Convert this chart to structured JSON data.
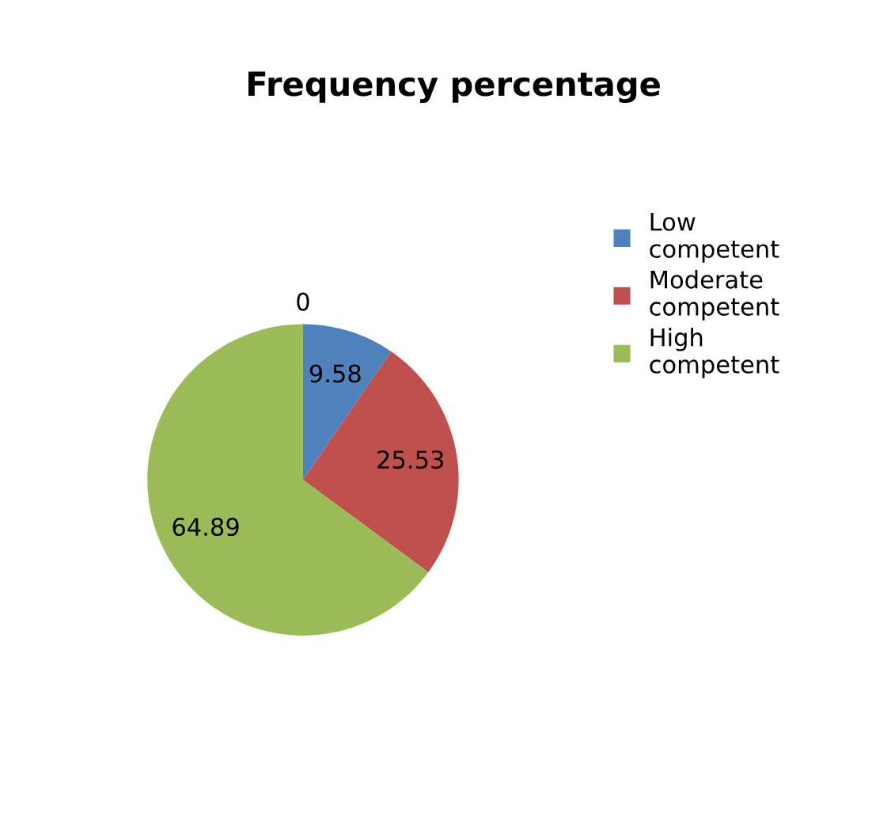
{
  "chart_data": {
    "type": "pie",
    "title": "Frequency percentage",
    "categories": [
      null,
      "Low competent",
      "Moderate competent",
      "High competent"
    ],
    "values": [
      0,
      9.58,
      25.53,
      64.89
    ],
    "colors": [
      "#8064a2",
      "#4f81bd",
      "#c0504d",
      "#9bbb59"
    ],
    "value_labels": [
      "0",
      "9.58",
      "25.53",
      "64.89"
    ],
    "legend": "right"
  }
}
